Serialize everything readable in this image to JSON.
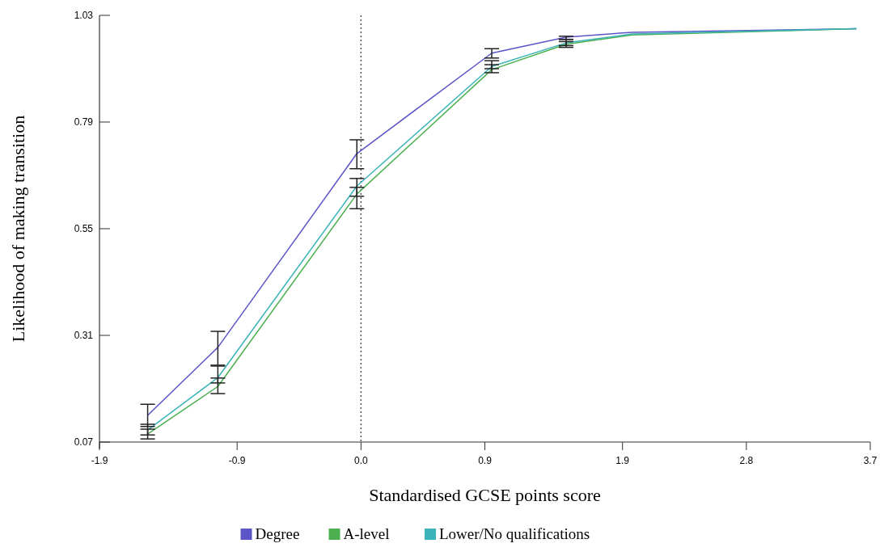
{
  "chart_data": {
    "type": "line",
    "xlabel": "Standardised GCSE points score",
    "ylabel": "Likelihood of making transition",
    "x": [
      -1.55,
      -1.04,
      -0.03,
      0.95,
      1.49,
      1.97,
      3.6
    ],
    "series": [
      {
        "name": "Degree",
        "color": "#5b55c8",
        "values": [
          0.13,
          0.283,
          0.719,
          0.945,
          0.981,
          0.992,
          1.0
        ],
        "errors": [
          [
            0.105,
            0.155
          ],
          [
            0.243,
            0.319
          ],
          [
            0.685,
            0.75
          ],
          [
            0.934,
            0.955
          ],
          [
            0.976,
            0.983
          ],
          null,
          null
        ]
      },
      {
        "name": "A-level",
        "color": "#4caf50",
        "values": [
          0.088,
          0.195,
          0.628,
          0.908,
          0.965,
          0.986,
          1.0
        ],
        "errors": [
          [
            0.077,
            0.099
          ],
          [
            0.179,
            0.214
          ],
          [
            0.595,
            0.643
          ],
          [
            0.901,
            0.919
          ],
          [
            0.958,
            0.971
          ],
          null,
          null
        ]
      },
      {
        "name": "Lower/No qualifications",
        "color": "#3bb3b8",
        "values": [
          0.097,
          0.215,
          0.646,
          0.915,
          0.968,
          0.988,
          1.0
        ],
        "errors": [
          [
            0.086,
            0.11
          ],
          [
            0.203,
            0.241
          ],
          [
            0.623,
            0.663
          ],
          [
            0.91,
            0.928
          ],
          [
            0.962,
            0.976
          ],
          null,
          null
        ]
      }
    ],
    "xlim": [
      -1.9,
      3.7
    ],
    "xticks": [
      -1.9,
      -0.9,
      {
        "value": 0,
        "label": "0.0"
      },
      0.9,
      1.9,
      2.8,
      3.7
    ],
    "ylim": [
      0.07,
      1.03
    ],
    "yticks": [
      0.07,
      0.31,
      0.55,
      0.79,
      1.03
    ],
    "ref_lines": [
      {
        "axis": "x",
        "value": 0,
        "line_style": "dotted",
        "color": "#555555"
      }
    ],
    "grid": false,
    "legend": "bottom",
    "marker": "none",
    "line_style": "solid"
  }
}
